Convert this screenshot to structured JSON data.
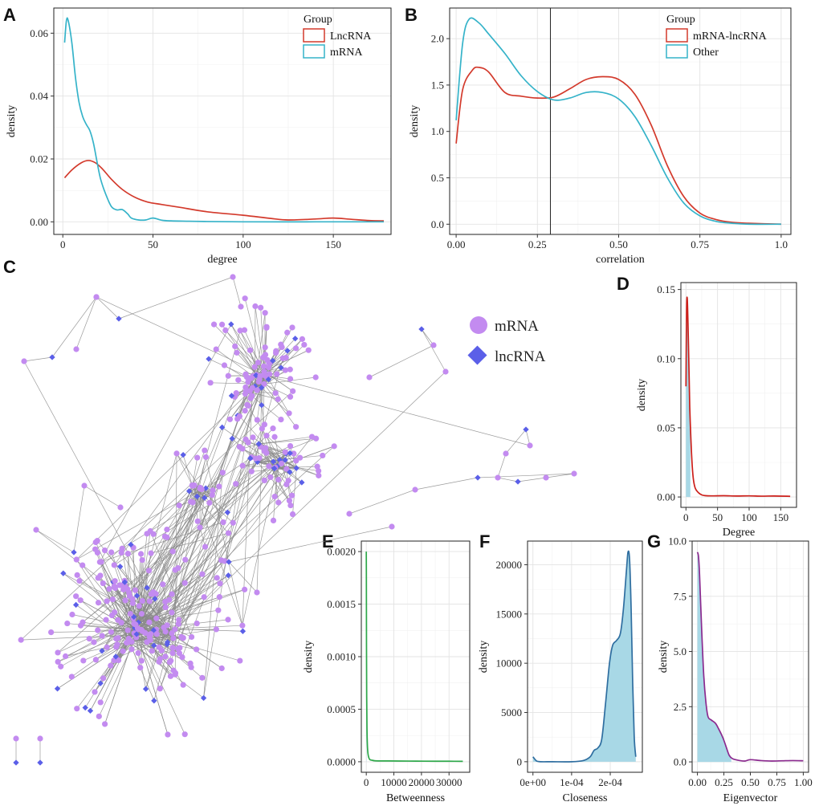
{
  "colors": {
    "lncrna_red": "#d33a2c",
    "mrna_cyan": "#35b3c9",
    "other_cyan": "#35b3c9",
    "degree_red": "#cc1f1a",
    "betweenness_green": "#2ea84a",
    "closeness_blue": "#2f6ea0",
    "closeness_fill": "#a8d8e6",
    "eigen_purple": "#8b2a8f",
    "fill_light_blue": "#a8d8e6",
    "node_mrna": "#c38bf0",
    "node_lncrna": "#5b5fe8",
    "edge_grey": "#8a8a8a"
  },
  "panels": {
    "A": {
      "label": "A"
    },
    "B": {
      "label": "B"
    },
    "C": {
      "label": "C"
    },
    "D": {
      "label": "D"
    },
    "E": {
      "label": "E"
    },
    "F": {
      "label": "F"
    },
    "G": {
      "label": "G"
    }
  },
  "network_legend": {
    "mrna": "mRNA",
    "lncrna": "lncRNA"
  },
  "chart_data": [
    {
      "id": "A",
      "type": "line",
      "xlabel": "degree",
      "ylabel": "density",
      "xlim": [
        -5,
        182
      ],
      "ylim": [
        -0.004,
        0.068
      ],
      "xticks": [
        0,
        50,
        100,
        150
      ],
      "yticks": [
        0.0,
        0.02,
        0.04,
        0.06
      ],
      "ytick_labels": [
        "0.00",
        "0.02",
        "0.04",
        "0.06"
      ],
      "grid": true,
      "legend_title": "Group",
      "legend_position": "top-right",
      "series": [
        {
          "name": "LncRNA",
          "color": "#d33a2c",
          "x": [
            1,
            5,
            10,
            14,
            18,
            22,
            27,
            33,
            40,
            47,
            55,
            65,
            80,
            100,
            115,
            125,
            140,
            150,
            160,
            170,
            178
          ],
          "y": [
            0.014,
            0.0165,
            0.0187,
            0.0195,
            0.0188,
            0.0168,
            0.0135,
            0.0103,
            0.0078,
            0.0063,
            0.0055,
            0.0046,
            0.0032,
            0.0021,
            0.0011,
            0.0006,
            0.0009,
            0.0012,
            0.0008,
            0.0004,
            0.0003
          ]
        },
        {
          "name": "mRNA",
          "color": "#35b3c9",
          "x": [
            1,
            2,
            3,
            5,
            7,
            9,
            11,
            13,
            15,
            17,
            19,
            21,
            24,
            27,
            30,
            33,
            36,
            38,
            42,
            46,
            50,
            55,
            60,
            70,
            80,
            100,
            140,
            178
          ],
          "y": [
            0.057,
            0.064,
            0.064,
            0.057,
            0.046,
            0.038,
            0.0335,
            0.031,
            0.029,
            0.025,
            0.019,
            0.0135,
            0.0085,
            0.0048,
            0.0038,
            0.0039,
            0.0025,
            0.0012,
            0.0006,
            0.0006,
            0.0012,
            0.0005,
            0.0003,
            0.0002,
            0.0001,
            0.0,
            0.0,
            0.0
          ]
        }
      ]
    },
    {
      "id": "B",
      "type": "line",
      "xlabel": "correlation",
      "ylabel": "density",
      "xlim": [
        -0.02,
        1.03
      ],
      "ylim": [
        -0.11,
        2.33
      ],
      "xticks": [
        0.0,
        0.25,
        0.5,
        0.75,
        1.0
      ],
      "xtick_labels": [
        "0.00",
        "0.25",
        "0.50",
        "0.75",
        "1.0"
      ],
      "yticks": [
        0.0,
        0.5,
        1.0,
        1.5,
        2.0
      ],
      "ytick_labels": [
        "0.0",
        "0.5",
        "1.0",
        "1.5",
        "2.0"
      ],
      "vline": 0.29,
      "grid": true,
      "legend_title": "Group",
      "legend_position": "top-right",
      "series": [
        {
          "name": "mRNA-lncRNA",
          "color": "#d33a2c",
          "x": [
            0.0,
            0.02,
            0.05,
            0.07,
            0.1,
            0.15,
            0.2,
            0.25,
            0.3,
            0.35,
            0.4,
            0.45,
            0.5,
            0.55,
            0.6,
            0.65,
            0.7,
            0.75,
            0.8,
            0.85,
            0.9,
            1.0
          ],
          "y": [
            0.87,
            1.45,
            1.66,
            1.69,
            1.64,
            1.42,
            1.38,
            1.36,
            1.37,
            1.46,
            1.56,
            1.59,
            1.56,
            1.4,
            1.07,
            0.63,
            0.3,
            0.12,
            0.05,
            0.02,
            0.01,
            0.0
          ]
        },
        {
          "name": "Other",
          "color": "#35b3c9",
          "x": [
            0.0,
            0.02,
            0.04,
            0.07,
            0.1,
            0.15,
            0.2,
            0.25,
            0.3,
            0.35,
            0.4,
            0.45,
            0.5,
            0.55,
            0.6,
            0.65,
            0.7,
            0.75,
            0.8,
            0.85,
            0.9,
            1.0
          ],
          "y": [
            1.12,
            1.95,
            2.21,
            2.17,
            2.05,
            1.84,
            1.6,
            1.43,
            1.34,
            1.36,
            1.42,
            1.42,
            1.35,
            1.16,
            0.85,
            0.5,
            0.23,
            0.09,
            0.03,
            0.01,
            0.0,
            0.0
          ]
        }
      ]
    },
    {
      "id": "D",
      "type": "area",
      "xlabel": "Degree",
      "ylabel": "density",
      "xlim": [
        -8,
        175
      ],
      "ylim": [
        -0.0075,
        0.155
      ],
      "xticks": [
        0,
        50,
        100,
        150
      ],
      "yticks": [
        0.0,
        0.05,
        0.1,
        0.15
      ],
      "ytick_labels": [
        "0.00",
        "0.05",
        "0.10",
        "0.15"
      ],
      "grid": true,
      "series": [
        {
          "name": "",
          "color": "#cc1f1a",
          "x": [
            0,
            1,
            2,
            3,
            4,
            5,
            6,
            8,
            10,
            12,
            15,
            20,
            25,
            30,
            40,
            60,
            80,
            100,
            120,
            140,
            165
          ],
          "y": [
            0.08,
            0.135,
            0.144,
            0.13,
            0.11,
            0.088,
            0.065,
            0.04,
            0.022,
            0.012,
            0.006,
            0.003,
            0.0015,
            0.001,
            0.0008,
            0.0009,
            0.0007,
            0.0008,
            0.0006,
            0.0007,
            0.0005
          ]
        }
      ],
      "fill_to_x": 7
    },
    {
      "id": "E",
      "type": "area",
      "xlabel": "Betweenness",
      "ylabel": "density",
      "xlim": [
        -1800,
        37500
      ],
      "ylim": [
        -0.0001,
        0.0021
      ],
      "xticks": [
        0,
        10000,
        20000,
        30000
      ],
      "xtick_labels": [
        "0",
        "10000",
        "20000",
        "30000"
      ],
      "yticks": [
        0.0,
        0.0005,
        0.001,
        0.0015,
        0.002
      ],
      "ytick_labels": [
        "0.0000",
        "0.0005",
        "0.0010",
        "0.0015",
        "0.0020"
      ],
      "grid": true,
      "series": [
        {
          "name": "",
          "color": "#2ea84a",
          "x": [
            0,
            30,
            80,
            150,
            250,
            400,
            600,
            900,
            1300,
            2000,
            3000,
            5000,
            8000,
            12000,
            18000,
            25000,
            30000,
            35000
          ],
          "y": [
            0.002,
            0.0018,
            0.0011,
            0.00062,
            0.00032,
            0.00016,
            8e-05,
            4e-05,
            2e-05,
            1.5e-05,
            1e-05,
            8e-06,
            8e-06,
            7e-06,
            6e-06,
            5e-06,
            5e-06,
            4e-06
          ]
        }
      ],
      "fill_to_x": 80
    },
    {
      "id": "F",
      "type": "area",
      "xlabel": "Closeness",
      "ylabel": "density",
      "xlim": [
        -1.4e-05,
        0.000283
      ],
      "ylim": [
        -1070,
        22400
      ],
      "xticks": [
        0.0,
        0.0001,
        0.0002
      ],
      "xtick_labels": [
        "0e+00",
        "1e-04",
        "2e-04"
      ],
      "yticks": [
        0,
        5000,
        10000,
        15000,
        20000
      ],
      "ytick_labels": [
        "0",
        "5000",
        "10000",
        "15000",
        "20000"
      ],
      "grid": true,
      "series": [
        {
          "name": "",
          "color": "#2f6ea0",
          "x": [
            0.0,
            4e-06,
            1e-05,
            2e-05,
            5e-05,
            0.0001,
            0.00013,
            0.000148,
            0.000158,
            0.000168,
            0.000178,
            0.000188,
            0.000198,
            0.000206,
            0.000216,
            0.000226,
            0.000234,
            0.000242,
            0.000246,
            0.00025,
            0.000254,
            0.000258,
            0.000262,
            0.000266
          ],
          "y": [
            500,
            300,
            60,
            0,
            0,
            0,
            120,
            500,
            1150,
            1400,
            2300,
            6000,
            10000,
            11800,
            12300,
            13000,
            15500,
            19500,
            21300,
            20500,
            15500,
            8000,
            2500,
            500
          ]
        }
      ],
      "fill": "full"
    },
    {
      "id": "G",
      "type": "area",
      "xlabel": "Eigenvector",
      "ylabel": "density",
      "xlim": [
        -0.05,
        1.05
      ],
      "ylim": [
        -0.47,
        10.0
      ],
      "xticks": [
        0.0,
        0.25,
        0.5,
        0.75,
        1.0
      ],
      "xtick_labels": [
        "0.00",
        "0.25",
        "0.50",
        "0.75",
        "1.00"
      ],
      "yticks": [
        0.0,
        2.5,
        5.0,
        7.5,
        10.0
      ],
      "ytick_labels": [
        "0.0",
        "2.5",
        "5.0",
        "7.5",
        "10.0"
      ],
      "grid": true,
      "series": [
        {
          "name": "",
          "color": "#8b2a8f",
          "x": [
            0.0,
            0.01,
            0.02,
            0.04,
            0.06,
            0.08,
            0.1,
            0.13,
            0.17,
            0.2,
            0.24,
            0.27,
            0.3,
            0.33,
            0.36,
            0.4,
            0.45,
            0.5,
            0.6,
            0.7,
            0.8,
            0.9,
            1.0
          ],
          "y": [
            9.5,
            9.3,
            8.5,
            6.0,
            3.9,
            2.7,
            2.05,
            1.9,
            1.75,
            1.5,
            1.1,
            0.7,
            0.3,
            0.15,
            0.1,
            0.06,
            0.04,
            0.1,
            0.06,
            0.04,
            0.05,
            0.06,
            0.05
          ]
        }
      ],
      "fill_to_x": 0.32
    }
  ]
}
